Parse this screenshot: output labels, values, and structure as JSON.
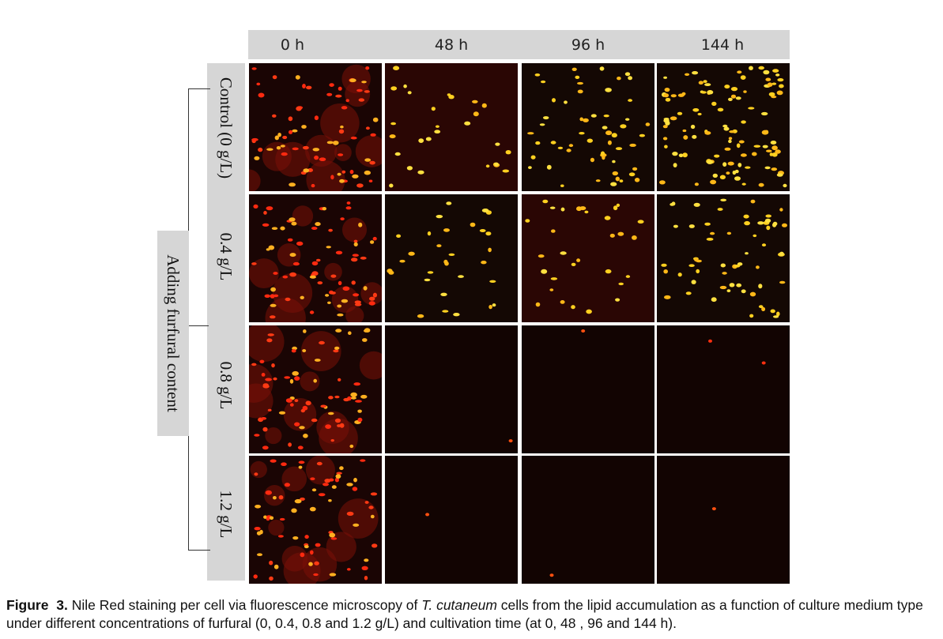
{
  "columns": [
    "0 h",
    "48 h",
    "96 h",
    "144 h"
  ],
  "rows": [
    "Control (0 g/L)",
    "0.4 g/L",
    "0.8 g/L",
    "1.2 g/L"
  ],
  "group_label": "Adding furfural content",
  "caption": {
    "figure_label": "Figure",
    "figure_number": "3.",
    "text_before": "Nile Red staining per cell via fluorescence microscopy of ",
    "species": "T. cutaneum",
    "text_after": " cells from the lipid accumulation as a function of culture medium type under different concentrations of furfural (0, 0.4, 0.8 and 1.2 g/L) and cultivation time (at 0, 48 , 96 and 144 h)."
  }
}
